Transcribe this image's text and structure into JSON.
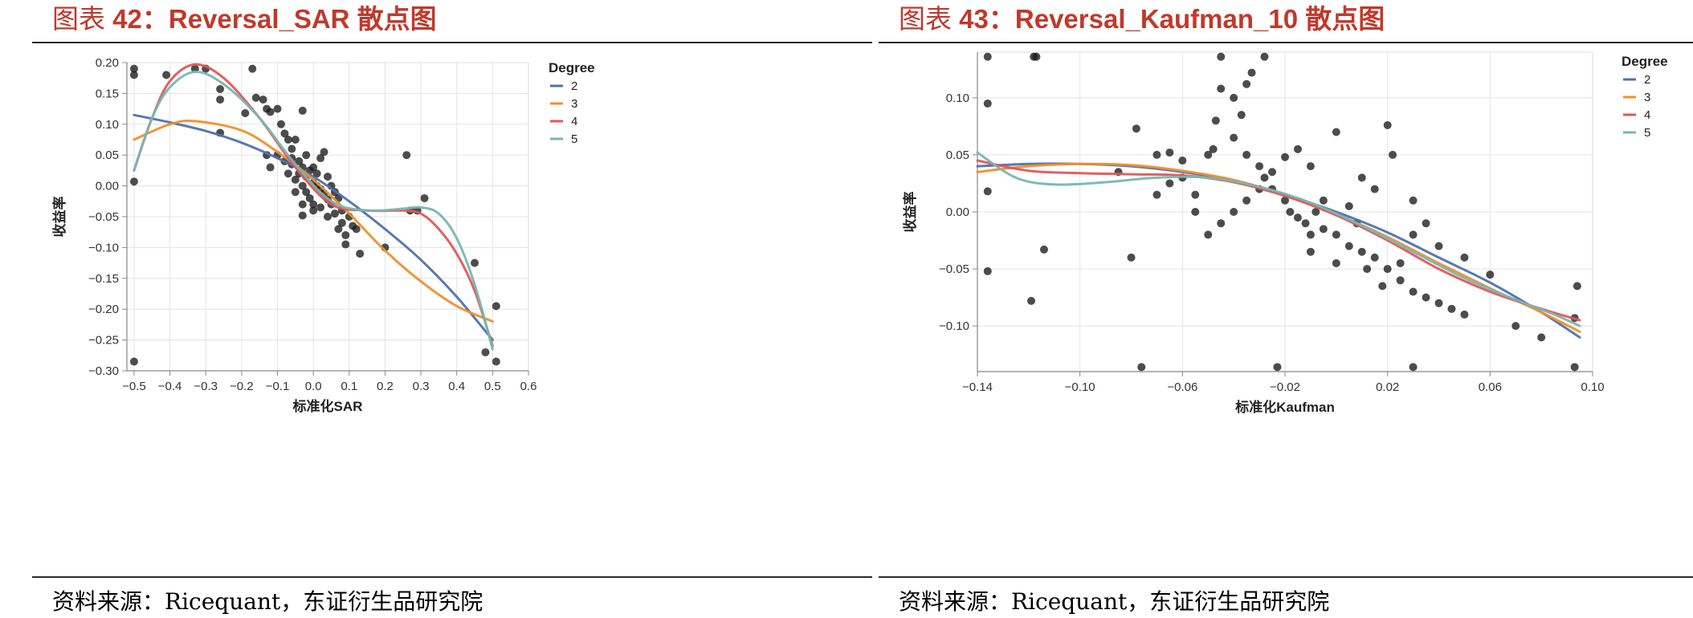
{
  "figures": [
    {
      "prefix": "图表",
      "title": "42：Reversal_SAR 散点图",
      "source": "资料来源：Ricequant，东证衍生品研究院"
    },
    {
      "prefix": "图表",
      "title": "43：Reversal_Kaufman_10 散点图",
      "source": "资料来源：Ricequant，东证衍生品研究院"
    }
  ],
  "chart_data": [
    {
      "type": "scatter",
      "title": "",
      "xlabel": "标准化SAR",
      "ylabel": "收益率",
      "xlim": [
        -0.52,
        0.6
      ],
      "ylim": [
        -0.3,
        0.2
      ],
      "xticks": [
        -0.5,
        -0.4,
        -0.3,
        -0.2,
        -0.1,
        0.0,
        0.1,
        0.2,
        0.3,
        0.4,
        0.5,
        0.6
      ],
      "xtick_labels": [
        "−0.5",
        "−0.4",
        "−0.3",
        "−0.2",
        "−0.1",
        "0.0",
        "0.1",
        "0.2",
        "0.3",
        "0.4",
        "0.5",
        "0.6"
      ],
      "yticks": [
        -0.3,
        -0.25,
        -0.2,
        -0.15,
        -0.1,
        -0.05,
        0.0,
        0.05,
        0.1,
        0.15,
        0.2
      ],
      "ytick_labels": [
        "−0.30",
        "−0.25",
        "−0.20",
        "−0.15",
        "−0.10",
        "−0.05",
        "0.00",
        "0.05",
        "0.10",
        "0.15",
        "0.20"
      ],
      "grid": true,
      "legend": {
        "title": "Degree",
        "position": "top-right"
      },
      "points": [
        [
          -0.5,
          0.19
        ],
        [
          -0.5,
          0.18
        ],
        [
          -0.5,
          0.007
        ],
        [
          -0.5,
          -0.285
        ],
        [
          -0.41,
          0.18
        ],
        [
          -0.33,
          0.19
        ],
        [
          -0.3,
          0.19
        ],
        [
          -0.26,
          0.157
        ],
        [
          -0.26,
          0.14
        ],
        [
          -0.26,
          0.086
        ],
        [
          -0.17,
          0.19
        ],
        [
          -0.19,
          0.118
        ],
        [
          -0.16,
          0.143
        ],
        [
          -0.14,
          0.14
        ],
        [
          -0.13,
          0.125
        ],
        [
          -0.12,
          0.12
        ],
        [
          -0.1,
          0.125
        ],
        [
          -0.09,
          0.1
        ],
        [
          -0.1,
          0.05
        ],
        [
          -0.13,
          0.05
        ],
        [
          -0.12,
          0.03
        ],
        [
          -0.03,
          0.122
        ],
        [
          -0.07,
          0.075
        ],
        [
          -0.06,
          0.06
        ],
        [
          -0.08,
          0.04
        ],
        [
          -0.07,
          0.02
        ],
        [
          -0.05,
          0.01
        ],
        [
          -0.03,
          0.0
        ],
        [
          -0.02,
          -0.01
        ],
        [
          -0.01,
          -0.02
        ],
        [
          0.0,
          -0.03
        ],
        [
          0.02,
          0.045
        ],
        [
          0.03,
          0.055
        ],
        [
          0.04,
          0.015
        ],
        [
          0.05,
          0.0
        ],
        [
          0.06,
          -0.01
        ],
        [
          0.07,
          -0.02
        ],
        [
          0.08,
          -0.04
        ],
        [
          0.08,
          -0.06
        ],
        [
          0.09,
          -0.08
        ],
        [
          0.09,
          -0.095
        ],
        [
          0.12,
          -0.07
        ],
        [
          0.13,
          -0.11
        ],
        [
          0.2,
          -0.1
        ],
        [
          0.26,
          0.05
        ],
        [
          0.27,
          -0.04
        ],
        [
          0.29,
          -0.04
        ],
        [
          0.31,
          -0.02
        ],
        [
          0.45,
          -0.125
        ],
        [
          0.48,
          -0.27
        ],
        [
          0.51,
          -0.285
        ],
        [
          0.51,
          -0.195
        ],
        [
          -0.04,
          0.02
        ],
        [
          -0.03,
          0.03
        ],
        [
          -0.02,
          0.015
        ],
        [
          0.0,
          0.005
        ],
        [
          0.01,
          0.0
        ],
        [
          0.02,
          -0.005
        ],
        [
          0.03,
          -0.012
        ],
        [
          0.04,
          -0.022
        ],
        [
          -0.06,
          0.035
        ],
        [
          -0.04,
          0.04
        ],
        [
          -0.01,
          0.025
        ],
        [
          0.01,
          0.02
        ],
        [
          -0.05,
          -0.01
        ],
        [
          -0.03,
          -0.03
        ],
        [
          -0.03,
          -0.048
        ],
        [
          0.0,
          -0.04
        ],
        [
          0.04,
          -0.05
        ],
        [
          0.06,
          -0.045
        ],
        [
          0.02,
          -0.035
        ],
        [
          0.05,
          -0.03
        ],
        [
          0.1,
          -0.05
        ],
        [
          0.11,
          -0.065
        ],
        [
          0.07,
          -0.07
        ],
        [
          -0.02,
          0.05
        ],
        [
          -0.08,
          0.085
        ],
        [
          -0.05,
          0.075
        ],
        [
          -0.06,
          0.045
        ],
        [
          0.0,
          0.03
        ]
      ],
      "series": [
        {
          "name": "2",
          "color": "#4c72b0",
          "x": [
            -0.5,
            -0.4,
            -0.3,
            -0.2,
            -0.1,
            0.0,
            0.1,
            0.2,
            0.3,
            0.4,
            0.5
          ],
          "y": [
            0.115,
            0.103,
            0.089,
            0.07,
            0.045,
            0.015,
            -0.025,
            -0.07,
            -0.12,
            -0.18,
            -0.25
          ]
        },
        {
          "name": "3",
          "color": "#f28e2b",
          "x": [
            -0.5,
            -0.4,
            -0.33,
            -0.2,
            -0.1,
            0.0,
            0.1,
            0.2,
            0.3,
            0.4,
            0.5
          ],
          "y": [
            0.075,
            0.1,
            0.105,
            0.09,
            0.055,
            0.01,
            -0.045,
            -0.105,
            -0.155,
            -0.195,
            -0.22
          ]
        },
        {
          "name": "4",
          "color": "#e15759",
          "x": [
            -0.5,
            -0.45,
            -0.4,
            -0.33,
            -0.25,
            -0.15,
            -0.05,
            0.05,
            0.15,
            0.25,
            0.3,
            0.35,
            0.4,
            0.45,
            0.5
          ],
          "y": [
            0.025,
            0.11,
            0.17,
            0.197,
            0.175,
            0.11,
            0.03,
            -0.03,
            -0.04,
            -0.04,
            -0.045,
            -0.07,
            -0.11,
            -0.17,
            -0.26
          ]
        },
        {
          "name": "5",
          "color": "#76b7b2",
          "x": [
            -0.5,
            -0.45,
            -0.4,
            -0.33,
            -0.25,
            -0.15,
            -0.05,
            0.05,
            0.15,
            0.25,
            0.3,
            0.35,
            0.4,
            0.45,
            0.5
          ],
          "y": [
            0.025,
            0.11,
            0.16,
            0.185,
            0.165,
            0.11,
            0.035,
            -0.025,
            -0.04,
            -0.037,
            -0.035,
            -0.045,
            -0.085,
            -0.16,
            -0.265
          ]
        }
      ]
    },
    {
      "type": "scatter",
      "title": "",
      "xlabel": "标准化Kaufman",
      "ylabel": "收益率",
      "xlim": [
        -0.14,
        0.1
      ],
      "ylim": [
        -0.14,
        0.14
      ],
      "xticks": [
        -0.14,
        -0.1,
        -0.06,
        -0.02,
        0.02,
        0.06,
        0.1
      ],
      "xtick_labels": [
        "−0.14",
        "−0.10",
        "−0.06",
        "−0.02",
        "0.02",
        "0.06",
        "0.10"
      ],
      "yticks": [
        -0.1,
        -0.05,
        0.0,
        0.05,
        0.1
      ],
      "ytick_labels": [
        "−0.10",
        "−0.05",
        "0.00",
        "0.05",
        "0.10"
      ],
      "grid": true,
      "legend": {
        "title": "Degree",
        "position": "top-right"
      },
      "points": [
        [
          -0.136,
          0.136
        ],
        [
          -0.136,
          0.095
        ],
        [
          -0.136,
          0.018
        ],
        [
          -0.136,
          -0.052
        ],
        [
          -0.118,
          0.136
        ],
        [
          -0.117,
          0.136
        ],
        [
          -0.114,
          -0.033
        ],
        [
          -0.119,
          -0.078
        ],
        [
          -0.08,
          -0.04
        ],
        [
          -0.078,
          0.073
        ],
        [
          -0.07,
          0.05
        ],
        [
          -0.065,
          0.052
        ],
        [
          -0.06,
          0.03
        ],
        [
          -0.055,
          0.015
        ],
        [
          -0.05,
          0.05
        ],
        [
          -0.048,
          0.055
        ],
        [
          -0.047,
          0.08
        ],
        [
          -0.045,
          0.108
        ],
        [
          -0.04,
          0.1
        ],
        [
          -0.037,
          0.085
        ],
        [
          -0.035,
          0.112
        ],
        [
          -0.033,
          0.122
        ],
        [
          -0.028,
          0.136
        ],
        [
          -0.045,
          0.136
        ],
        [
          -0.04,
          0.065
        ],
        [
          -0.035,
          0.05
        ],
        [
          -0.03,
          0.04
        ],
        [
          -0.028,
          0.03
        ],
        [
          -0.025,
          0.02
        ],
        [
          -0.02,
          0.01
        ],
        [
          -0.018,
          0.0
        ],
        [
          -0.015,
          -0.005
        ],
        [
          -0.012,
          -0.01
        ],
        [
          -0.01,
          -0.02
        ],
        [
          -0.005,
          -0.015
        ],
        [
          0.0,
          -0.02
        ],
        [
          0.005,
          -0.03
        ],
        [
          0.01,
          -0.035
        ],
        [
          0.015,
          -0.04
        ],
        [
          0.02,
          -0.05
        ],
        [
          0.025,
          -0.06
        ],
        [
          0.03,
          -0.07
        ],
        [
          0.035,
          -0.075
        ],
        [
          0.04,
          -0.08
        ],
        [
          0.045,
          -0.085
        ],
        [
          0.05,
          -0.09
        ],
        [
          0.06,
          -0.055
        ],
        [
          0.07,
          -0.1
        ],
        [
          0.08,
          -0.11
        ],
        [
          0.093,
          -0.093
        ],
        [
          0.094,
          -0.065
        ],
        [
          0.093,
          -0.136
        ],
        [
          0.03,
          -0.136
        ],
        [
          -0.023,
          -0.136
        ],
        [
          -0.076,
          -0.136
        ],
        [
          0.0,
          0.07
        ],
        [
          0.02,
          0.076
        ],
        [
          0.022,
          0.05
        ],
        [
          0.015,
          0.02
        ],
        [
          0.01,
          0.03
        ],
        [
          -0.01,
          0.04
        ],
        [
          -0.015,
          0.055
        ],
        [
          -0.02,
          0.048
        ],
        [
          -0.025,
          0.035
        ],
        [
          0.03,
          -0.02
        ],
        [
          0.035,
          -0.01
        ],
        [
          0.04,
          -0.03
        ],
        [
          0.05,
          -0.04
        ],
        [
          -0.005,
          0.01
        ],
        [
          0.005,
          0.005
        ],
        [
          0.008,
          -0.01
        ],
        [
          -0.008,
          0.0
        ],
        [
          -0.03,
          0.02
        ],
        [
          -0.035,
          0.01
        ],
        [
          -0.04,
          0.0
        ],
        [
          -0.045,
          -0.01
        ],
        [
          -0.05,
          -0.02
        ],
        [
          -0.055,
          0.0
        ],
        [
          0.0,
          -0.045
        ],
        [
          -0.01,
          -0.035
        ],
        [
          0.012,
          -0.05
        ],
        [
          0.018,
          -0.065
        ],
        [
          0.025,
          -0.045
        ],
        [
          0.03,
          0.01
        ],
        [
          -0.06,
          0.045
        ],
        [
          -0.065,
          0.025
        ],
        [
          -0.07,
          0.015
        ],
        [
          -0.085,
          0.035
        ]
      ],
      "series": [
        {
          "name": "2",
          "color": "#4c72b0",
          "x": [
            -0.14,
            -0.12,
            -0.1,
            -0.08,
            -0.06,
            -0.04,
            -0.02,
            0.0,
            0.02,
            0.04,
            0.06,
            0.08,
            0.095
          ],
          "y": [
            0.04,
            0.042,
            0.042,
            0.04,
            0.035,
            0.027,
            0.015,
            0.0,
            -0.018,
            -0.04,
            -0.062,
            -0.088,
            -0.11
          ]
        },
        {
          "name": "3",
          "color": "#f28e2b",
          "x": [
            -0.14,
            -0.12,
            -0.1,
            -0.08,
            -0.06,
            -0.04,
            -0.02,
            0.0,
            0.02,
            0.04,
            0.06,
            0.08,
            0.095
          ],
          "y": [
            0.035,
            0.04,
            0.042,
            0.041,
            0.036,
            0.028,
            0.015,
            -0.002,
            -0.022,
            -0.045,
            -0.067,
            -0.088,
            -0.105
          ]
        },
        {
          "name": "4",
          "color": "#e15759",
          "x": [
            -0.14,
            -0.12,
            -0.1,
            -0.08,
            -0.06,
            -0.04,
            -0.02,
            0.0,
            0.02,
            0.04,
            0.06,
            0.08,
            0.095
          ],
          "y": [
            0.045,
            0.036,
            0.034,
            0.033,
            0.032,
            0.026,
            0.014,
            -0.003,
            -0.025,
            -0.05,
            -0.07,
            -0.085,
            -0.095
          ]
        },
        {
          "name": "5",
          "color": "#76b7b2",
          "x": [
            -0.14,
            -0.125,
            -0.11,
            -0.09,
            -0.07,
            -0.05,
            -0.03,
            -0.01,
            0.01,
            0.03,
            0.05,
            0.07,
            0.085,
            0.095
          ],
          "y": [
            0.052,
            0.03,
            0.024,
            0.026,
            0.03,
            0.03,
            0.022,
            0.008,
            -0.012,
            -0.035,
            -0.058,
            -0.077,
            -0.09,
            -0.1
          ]
        }
      ]
    }
  ]
}
